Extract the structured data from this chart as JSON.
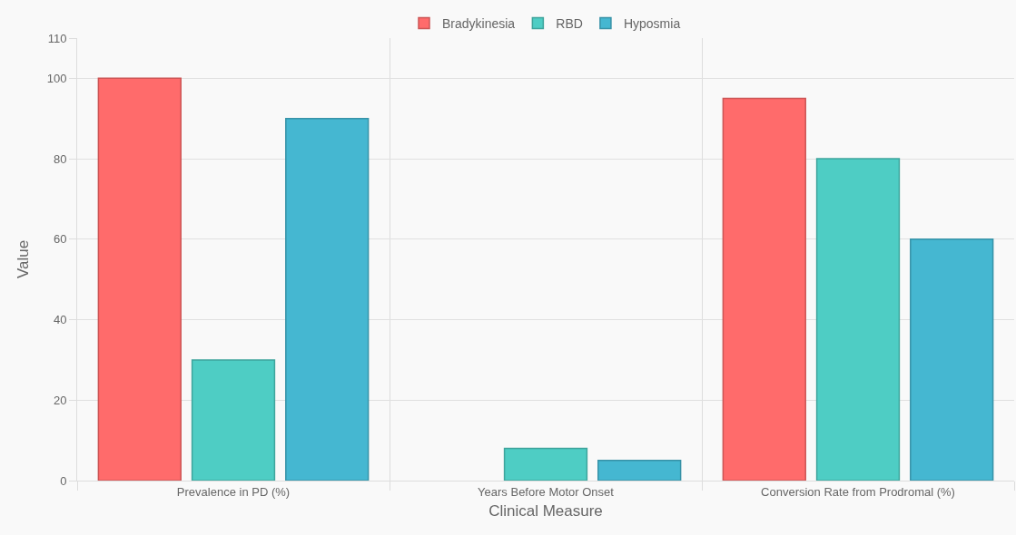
{
  "chart_data": {
    "type": "bar",
    "xlabel": "Clinical Measure",
    "ylabel": "Value",
    "categories": [
      "Prevalence in PD (%)",
      "Years Before Motor Onset",
      "Conversion Rate from Prodromal (%)"
    ],
    "series": [
      {
        "name": "Bradykinesia",
        "color": "#ff6b6b",
        "values": [
          100,
          null,
          95
        ]
      },
      {
        "name": "RBD",
        "color": "#4ecdc4",
        "values": [
          30,
          8,
          80
        ]
      },
      {
        "name": "Hyposmia",
        "color": "#45b7d1",
        "values": [
          90,
          5,
          60
        ]
      }
    ],
    "ylim": [
      0,
      110
    ],
    "yticks": [
      0,
      20,
      40,
      60,
      80,
      100,
      110
    ],
    "grid": true,
    "legend": "top"
  }
}
